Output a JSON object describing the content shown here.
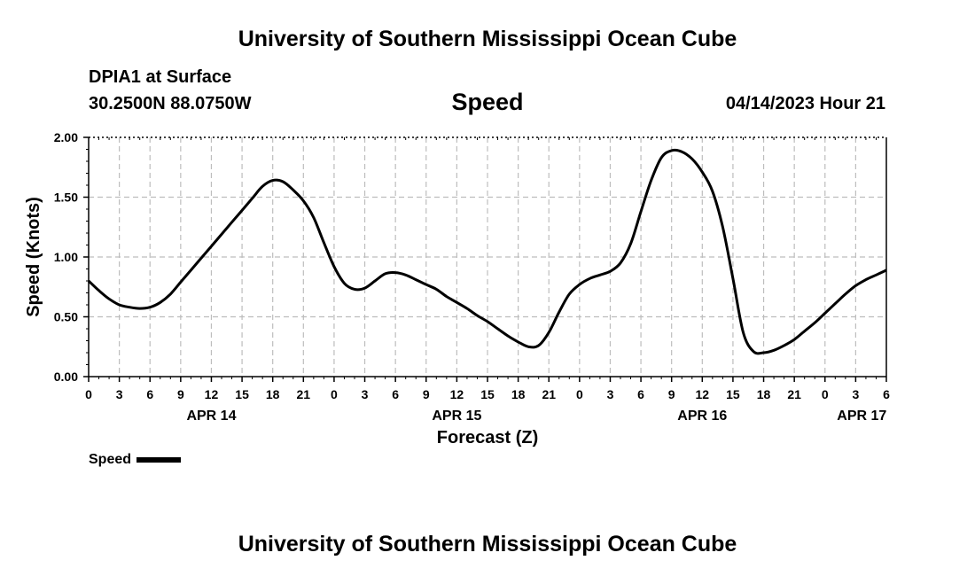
{
  "page": {
    "title_top": "University of Southern Mississippi Ocean Cube",
    "station": "DPIA1 at Surface",
    "coords": "30.2500N  88.0750W",
    "variable": "Speed",
    "timestamp": "04/14/2023 Hour 21",
    "title_bottom": "University of Southern Mississippi Ocean Cube",
    "legend_label": "Speed"
  },
  "colors": {
    "line": "#000000",
    "grid": "#bdbdbd",
    "axis": "#000000"
  },
  "chart_data": {
    "type": "line",
    "title": "Speed",
    "xlabel": "Forecast (Z)",
    "ylabel": "Speed (Knots)",
    "xlim": [
      0,
      78
    ],
    "ylim": [
      0,
      2.0
    ],
    "yticks": [
      0,
      0.5,
      1.0,
      1.5,
      2.0
    ],
    "ytick_labels": [
      "0.00",
      "0.50",
      "1.00",
      "1.50",
      "2.00"
    ],
    "xtick_labels": [
      "0",
      "3",
      "6",
      "9",
      "12",
      "15",
      "18",
      "21",
      "0",
      "3",
      "6",
      "9",
      "12",
      "15",
      "18",
      "21",
      "0",
      "3",
      "6",
      "9",
      "12",
      "15",
      "18",
      "21",
      "0",
      "3",
      "6"
    ],
    "day_labels": [
      {
        "label": "APR 14",
        "hour": 12
      },
      {
        "label": "APR 15",
        "hour": 36
      },
      {
        "label": "APR 16",
        "hour": 60
      },
      {
        "label": "APR 17",
        "hour": 75.6
      }
    ],
    "grid": true,
    "legend": "bottom-left",
    "series": [
      {
        "name": "Speed",
        "x": [
          0,
          1,
          2,
          3,
          4,
          5,
          6,
          7,
          8,
          9,
          10,
          11,
          12,
          13,
          14,
          15,
          16,
          17,
          18,
          19,
          20,
          21,
          22,
          23,
          24,
          25,
          26,
          27,
          28,
          29,
          30,
          31,
          32,
          33,
          34,
          35,
          36,
          37,
          38,
          39,
          40,
          41,
          42,
          43,
          44,
          45,
          46,
          47,
          48,
          49,
          50,
          51,
          52,
          53,
          54,
          55,
          56,
          57,
          58,
          59,
          60,
          61,
          62,
          63,
          64,
          65,
          66,
          67,
          68,
          69,
          70,
          71,
          72,
          73,
          74,
          75,
          76,
          77,
          78
        ],
        "values": [
          0.8,
          0.72,
          0.65,
          0.6,
          0.58,
          0.57,
          0.58,
          0.62,
          0.69,
          0.79,
          0.89,
          0.99,
          1.09,
          1.19,
          1.29,
          1.39,
          1.49,
          1.59,
          1.64,
          1.63,
          1.56,
          1.47,
          1.33,
          1.12,
          0.92,
          0.78,
          0.73,
          0.74,
          0.8,
          0.86,
          0.87,
          0.85,
          0.81,
          0.77,
          0.73,
          0.67,
          0.62,
          0.57,
          0.51,
          0.46,
          0.4,
          0.34,
          0.29,
          0.25,
          0.26,
          0.37,
          0.54,
          0.69,
          0.77,
          0.82,
          0.85,
          0.88,
          0.95,
          1.11,
          1.38,
          1.64,
          1.83,
          1.89,
          1.88,
          1.82,
          1.71,
          1.55,
          1.25,
          0.82,
          0.37,
          0.21,
          0.2,
          0.22,
          0.26,
          0.31,
          0.38,
          0.45,
          0.53,
          0.61,
          0.69,
          0.76,
          0.81,
          0.85,
          0.89
        ]
      }
    ]
  }
}
